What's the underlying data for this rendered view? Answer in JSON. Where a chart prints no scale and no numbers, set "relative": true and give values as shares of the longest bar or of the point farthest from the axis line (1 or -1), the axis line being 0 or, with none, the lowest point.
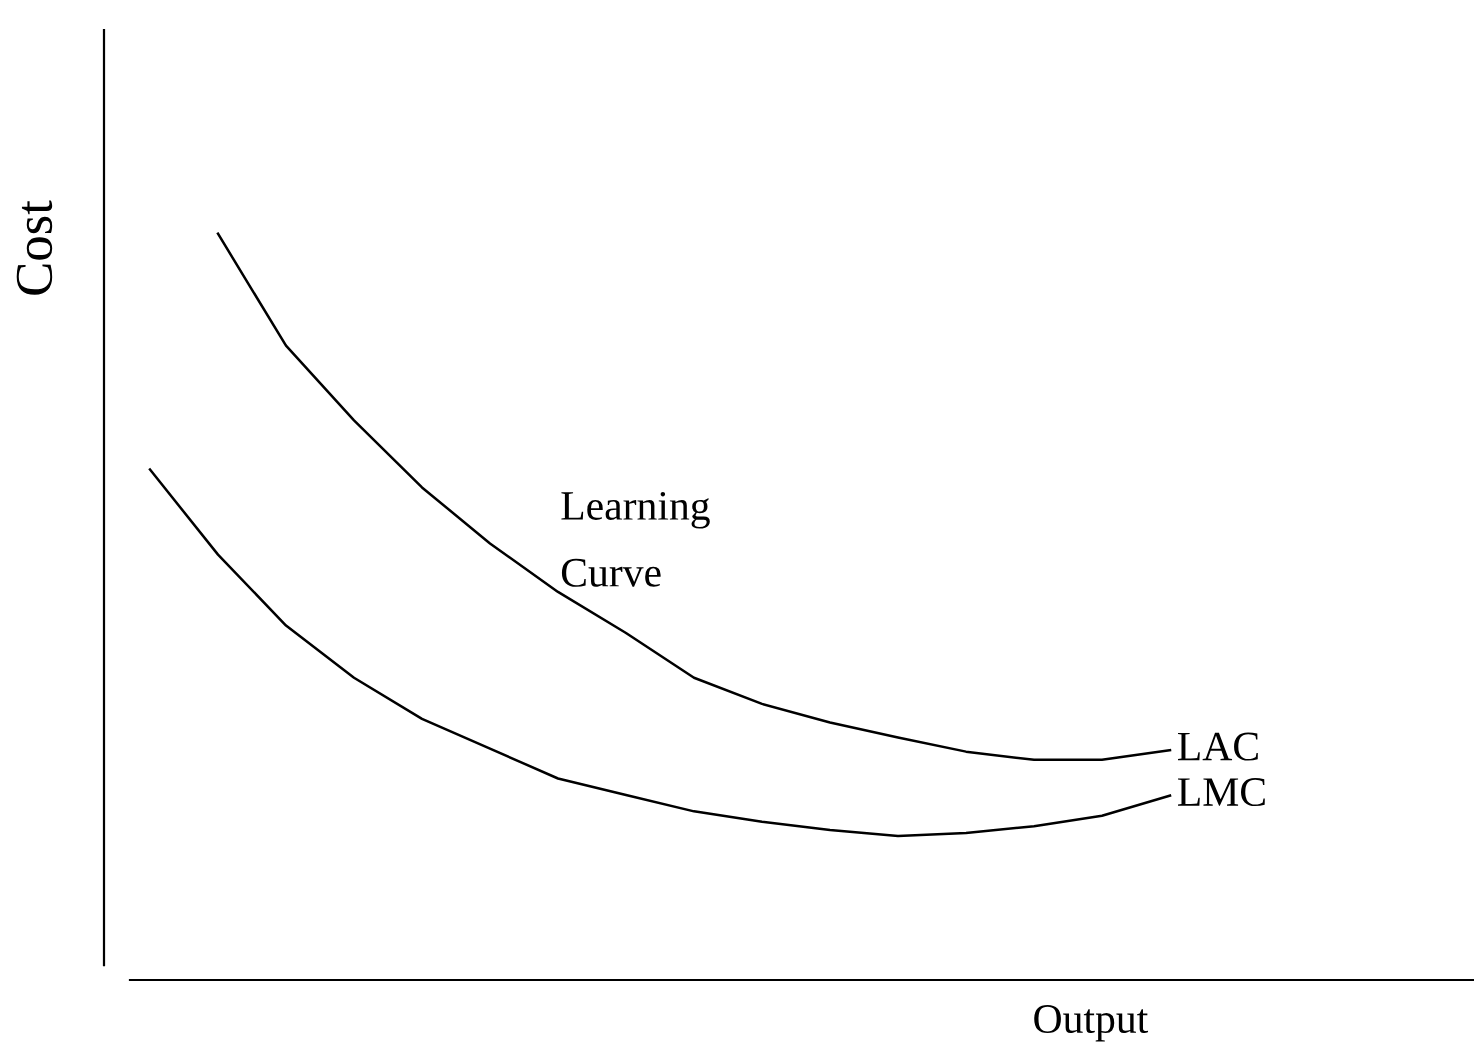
{
  "chart_data": {
    "type": "line",
    "relative": true,
    "xlabel": "Output",
    "ylabel": "Cost",
    "marker": "none",
    "line_style": "solid",
    "annotations": [
      "Learning\nCurve"
    ],
    "categories": [
      null,
      null,
      null,
      null,
      null,
      null,
      null,
      null,
      null,
      null,
      null,
      null,
      null,
      null,
      null,
      null
    ],
    "series": [
      {
        "name": "LAC",
        "color": "#000000",
        "values": [
          null,
          1,
          0.85,
          0.75,
          0.66,
          0.585,
          0.52,
          0.465,
          0.405,
          0.37,
          0.345,
          0.325,
          0.306,
          0.295,
          0.295,
          0.308
        ]
      },
      {
        "name": "LMC",
        "color": "#000000",
        "values": [
          0.684,
          0.57,
          0.475,
          0.405,
          0.35,
          0.31,
          0.27,
          0.248,
          0.226,
          0.212,
          0.201,
          0.193,
          0.197,
          0.206,
          0.22,
          0.247
        ]
      }
    ]
  }
}
